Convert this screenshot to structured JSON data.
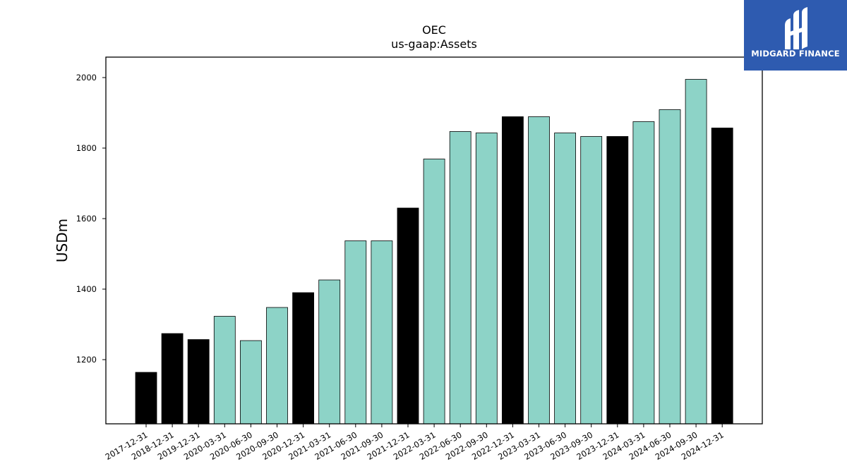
{
  "logo": {
    "text": "MIDGARD FINANCE"
  },
  "chart_data": {
    "type": "bar",
    "title": "OEC",
    "subtitle": "us-gaap:Assets",
    "xlabel": "",
    "ylabel": "USDm",
    "ylim": [
      1018,
      2058
    ],
    "yticks": [
      1200,
      1400,
      1600,
      1800,
      2000
    ],
    "categories": [
      "2017-12-31",
      "2018-12-31",
      "2019-12-31",
      "2020-03-31",
      "2020-06-30",
      "2020-09-30",
      "2020-12-31",
      "2021-03-31",
      "2021-06-30",
      "2021-09-30",
      "2021-12-31",
      "2022-03-31",
      "2022-06-30",
      "2022-09-30",
      "2022-12-31",
      "2023-03-31",
      "2023-06-30",
      "2023-09-30",
      "2023-12-31",
      "2024-03-31",
      "2024-06-30",
      "2024-09-30",
      "2024-12-31"
    ],
    "values": [
      1164,
      1274,
      1257,
      1323,
      1254,
      1348,
      1390,
      1426,
      1537,
      1537,
      1630,
      1769,
      1847,
      1843,
      1889,
      1889,
      1843,
      1833,
      1833,
      1875,
      1909,
      1995,
      1857
    ],
    "period_type": [
      "annual",
      "annual",
      "annual",
      "quarterly",
      "quarterly",
      "quarterly",
      "annual",
      "quarterly",
      "quarterly",
      "quarterly",
      "annual",
      "quarterly",
      "quarterly",
      "quarterly",
      "annual",
      "quarterly",
      "quarterly",
      "quarterly",
      "annual",
      "quarterly",
      "quarterly",
      "quarterly",
      "annual"
    ],
    "colors": {
      "annual": "#000000",
      "quarterly": "#8dd3c7",
      "edge": "#000000"
    },
    "grid": false,
    "legend": "none"
  }
}
